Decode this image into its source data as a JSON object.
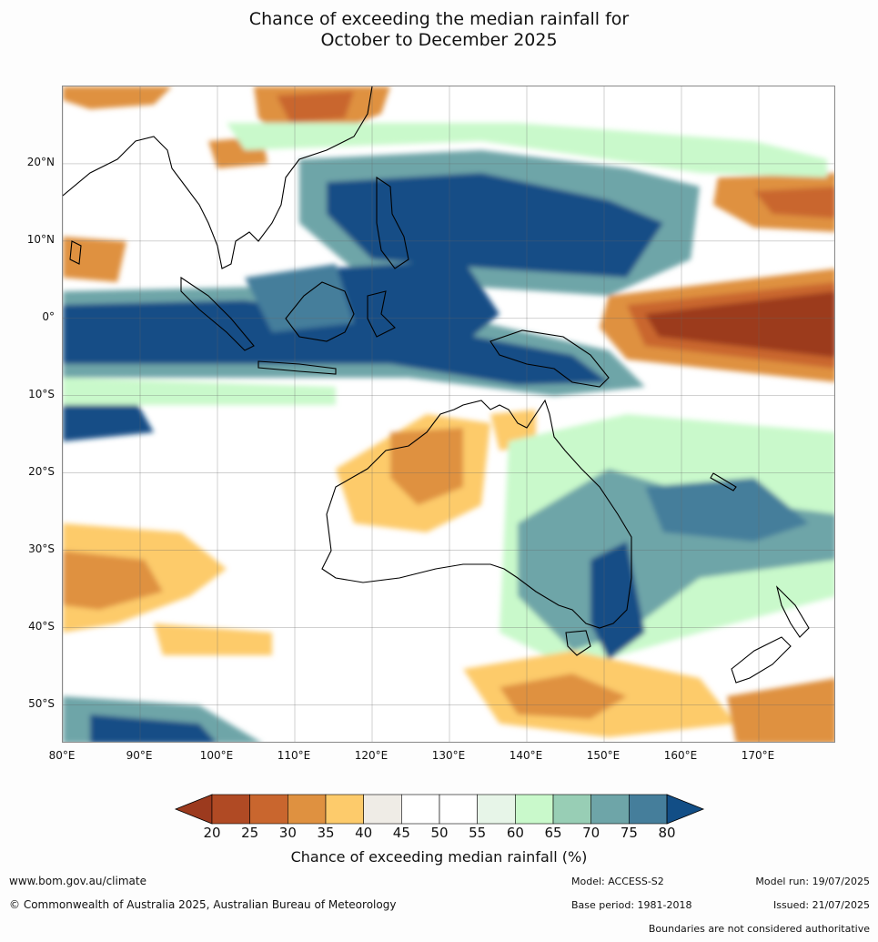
{
  "title": {
    "line1": "Chance of exceeding the median rainfall for",
    "line2": "October to December 2025"
  },
  "map": {
    "lat_labels": [
      "20°N",
      "10°N",
      "0°",
      "10°S",
      "20°S",
      "30°S",
      "40°S",
      "50°S"
    ],
    "lon_labels": [
      "80°E",
      "90°E",
      "100°E",
      "110°E",
      "120°E",
      "130°E",
      "140°E",
      "150°E",
      "160°E",
      "170°E"
    ],
    "lat_range": [
      -55,
      30
    ],
    "lon_range": [
      80,
      180
    ],
    "regions": [
      {
        "name": "Central Pacific equatorial dry signal",
        "category": "20-25"
      },
      {
        "name": "Eastern Indian Ocean equatorial wet signal",
        "category": "75-80"
      },
      {
        "name": "Maritime Continent wet signal",
        "category": "75-80"
      },
      {
        "name": "Western Australia dry signal",
        "category": "30-40"
      },
      {
        "name": "South-east Australia / Tasman wet signal",
        "category": "70-80"
      },
      {
        "name": "Southern Ocean dry signal",
        "category": "30-40"
      }
    ]
  },
  "colorbar": {
    "ticks": [
      "20",
      "25",
      "30",
      "35",
      "40",
      "45",
      "50",
      "55",
      "60",
      "65",
      "70",
      "75",
      "80"
    ],
    "colors": [
      "#9c3a1e",
      "#b04a24",
      "#c9662e",
      "#df9140",
      "#fdcb6b",
      "#efece6",
      "#ffffff",
      "#ffffff",
      "#e7f5e8",
      "#c9f9cb",
      "#98ceb5",
      "#6ea5a8",
      "#457e9b",
      "#124e86"
    ],
    "label": "Chance of exceeding median rainfall (%)"
  },
  "footer": {
    "website": "www.bom.gov.au/climate",
    "copyright": "© Commonwealth of Australia 2025, Australian Bureau of Meteorology",
    "model": "Model: ACCESS-S2",
    "base_period": "Base period: 1981-2018",
    "model_run": "Model run: 19/07/2025",
    "issued": "Issued: 21/07/2025",
    "disclaimer": "Boundaries are not considered authoritative"
  }
}
